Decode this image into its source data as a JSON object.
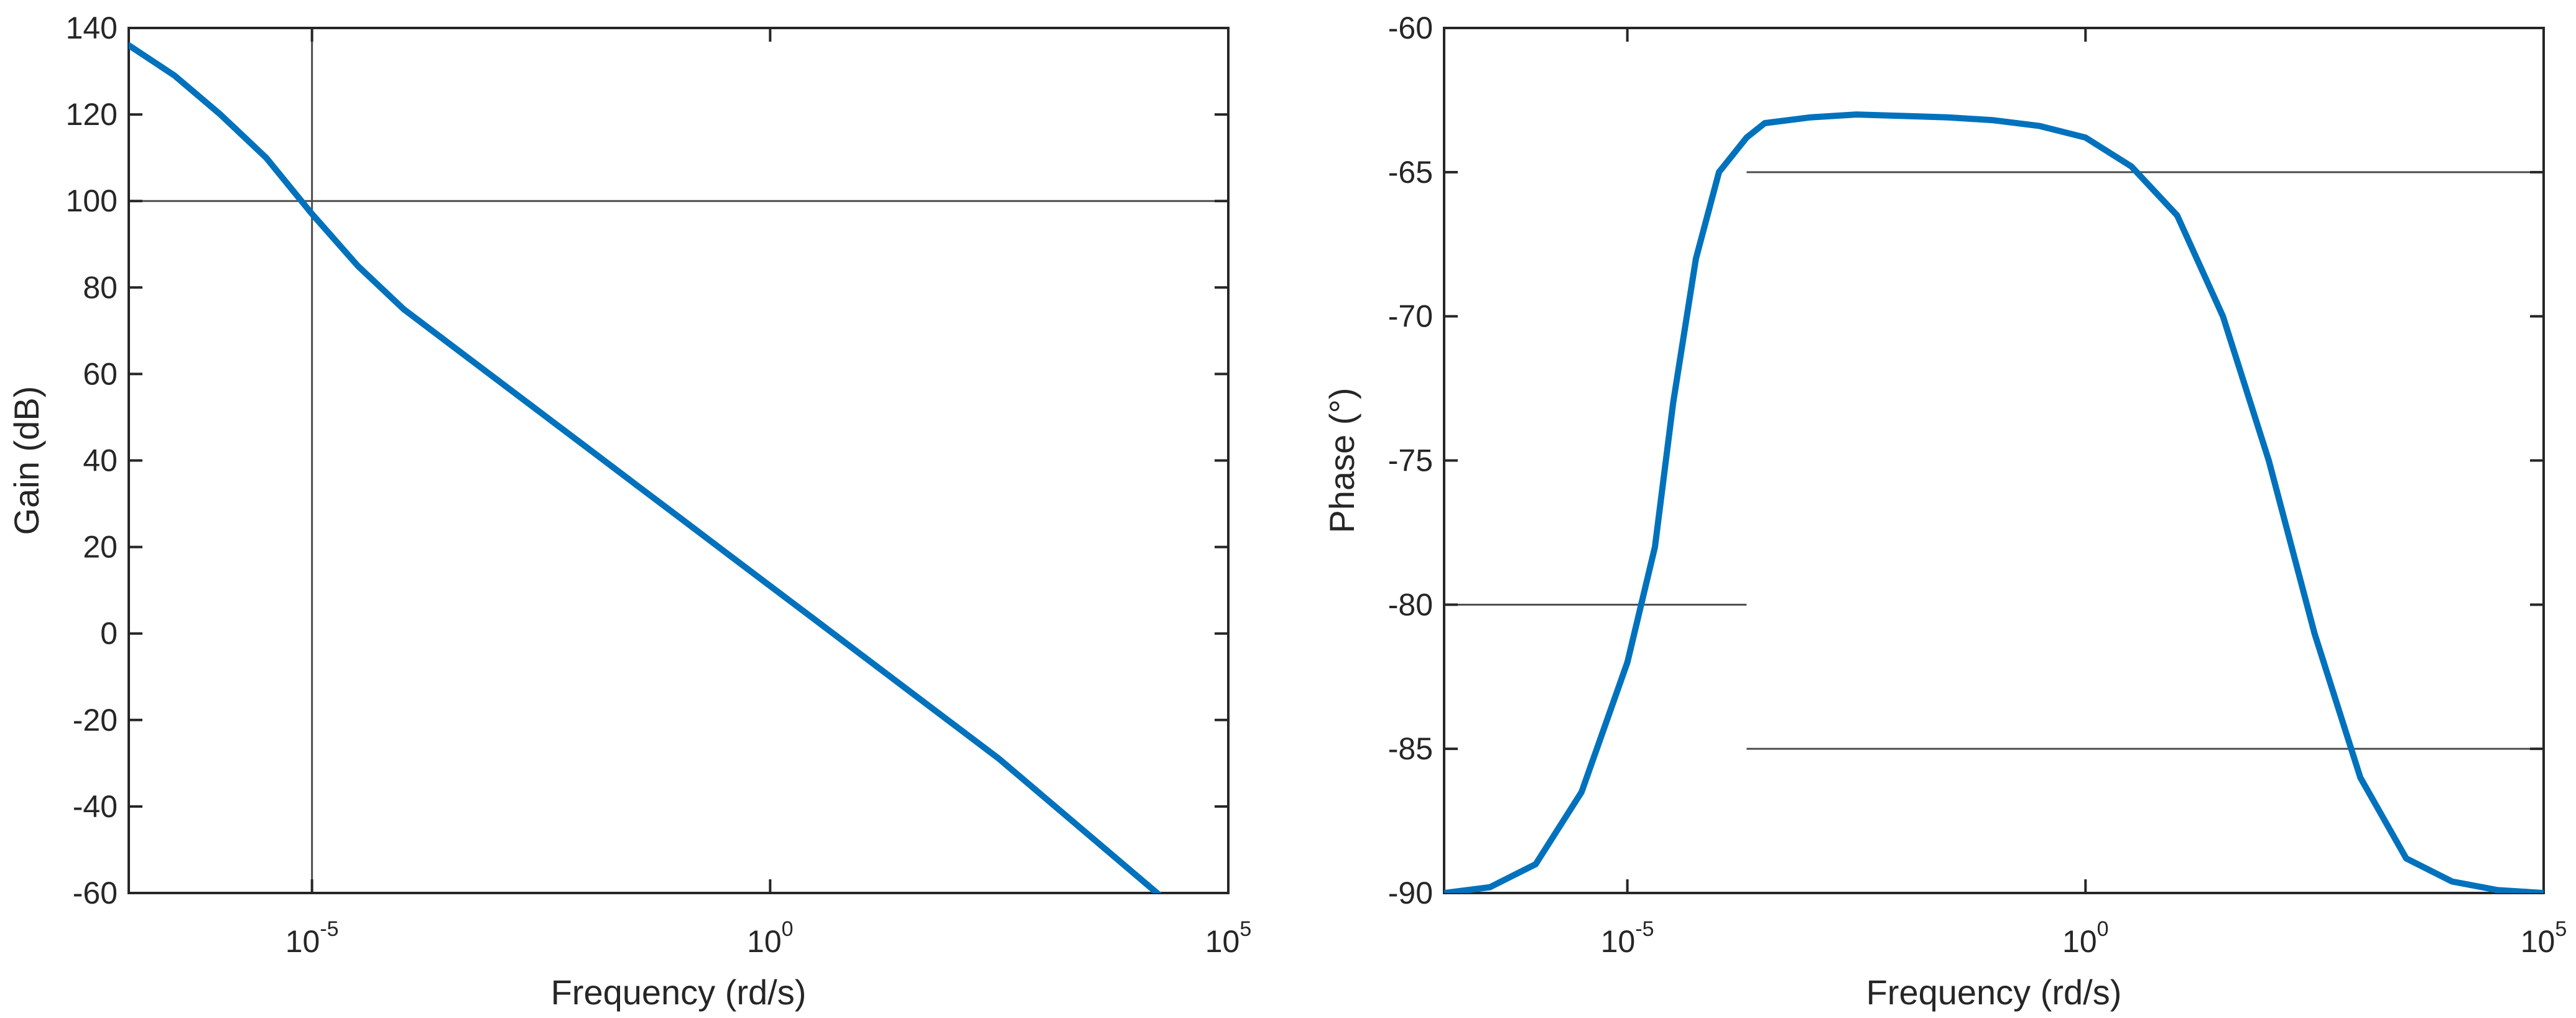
{
  "chart_data": [
    {
      "type": "line",
      "xlabel": "Frequency (rd/s)",
      "ylabel": "Gain (dB)",
      "x_scale": "log",
      "xlim": [
        1e-07,
        100000
      ],
      "ylim": [
        -60,
        140
      ],
      "x_ticks": [
        {
          "value": 1e-05,
          "base": "10",
          "exp": "-5"
        },
        {
          "value": 1,
          "base": "10",
          "exp": "0"
        },
        {
          "value": 100000,
          "base": "10",
          "exp": "5"
        }
      ],
      "y_ticks": [
        -60,
        -40,
        -20,
        0,
        20,
        40,
        60,
        80,
        100,
        120,
        140
      ],
      "grid": false,
      "line_color": "#0072BD",
      "series": [
        {
          "x": [
            1e-07,
            3.16e-07,
            1e-06,
            3.16e-06,
            1e-05,
            3.16e-05,
            0.0001,
            0.000316,
            0.001,
            0.00316,
            0.01,
            0.0316,
            0.1,
            0.316,
            1,
            3.16,
            10,
            31.6,
            100,
            316,
            1000,
            3160,
            10000,
            31600,
            100000
          ],
          "y": [
            136,
            129,
            120,
            110,
            97,
            85,
            75,
            67,
            59,
            51,
            43,
            35,
            27,
            19,
            11,
            3,
            -5,
            -13,
            -21,
            -29,
            -38,
            -47,
            -56,
            -65,
            -74
          ]
        }
      ],
      "reference_lines": [
        {
          "orientation": "horizontal",
          "y": 100,
          "color": "#4d4d4d"
        },
        {
          "orientation": "vertical",
          "x": 1e-05,
          "color": "#4d4d4d"
        }
      ]
    },
    {
      "type": "line",
      "xlabel": "Frequency (rd/s)",
      "ylabel": "Phase (°)",
      "x_scale": "log",
      "xlim": [
        1e-07,
        100000
      ],
      "ylim": [
        -90,
        -60
      ],
      "x_ticks": [
        {
          "value": 1e-05,
          "base": "10",
          "exp": "-5"
        },
        {
          "value": 1,
          "base": "10",
          "exp": "0"
        },
        {
          "value": 100000,
          "base": "10",
          "exp": "5"
        }
      ],
      "y_ticks": [
        -90,
        -85,
        -80,
        -75,
        -70,
        -65,
        -60
      ],
      "grid": false,
      "line_color": "#0072BD",
      "series": [
        {
          "x": [
            1e-07,
            3.16e-07,
            1e-06,
            3.16e-06,
            1e-05,
            2e-05,
            3.16e-05,
            5.6e-05,
            0.0001,
            0.0002,
            0.000316,
            0.001,
            0.00316,
            0.01,
            0.0316,
            0.1,
            0.316,
            1,
            3.16,
            10,
            31.6,
            100,
            316,
            1000,
            3160,
            10000,
            31600,
            100000
          ],
          "y": [
            -90,
            -89.8,
            -89,
            -86.5,
            -82,
            -78,
            -73,
            -68,
            -65,
            -63.8,
            -63.3,
            -63.1,
            -63.0,
            -63.05,
            -63.1,
            -63.2,
            -63.4,
            -63.8,
            -64.8,
            -66.5,
            -70,
            -75,
            -81,
            -86,
            -88.8,
            -89.6,
            -89.9,
            -90
          ]
        }
      ],
      "reference_lines": [
        {
          "orientation": "horizontal",
          "y": -65,
          "x_from": 0.0002,
          "x_to": 100000,
          "color": "#4d4d4d"
        },
        {
          "orientation": "horizontal",
          "y": -80,
          "x_from": 1e-07,
          "x_to": 0.0002,
          "color": "#4d4d4d"
        },
        {
          "orientation": "horizontal",
          "y": -85,
          "x_from": 0.0002,
          "x_to": 100000,
          "color": "#4d4d4d"
        }
      ]
    }
  ]
}
